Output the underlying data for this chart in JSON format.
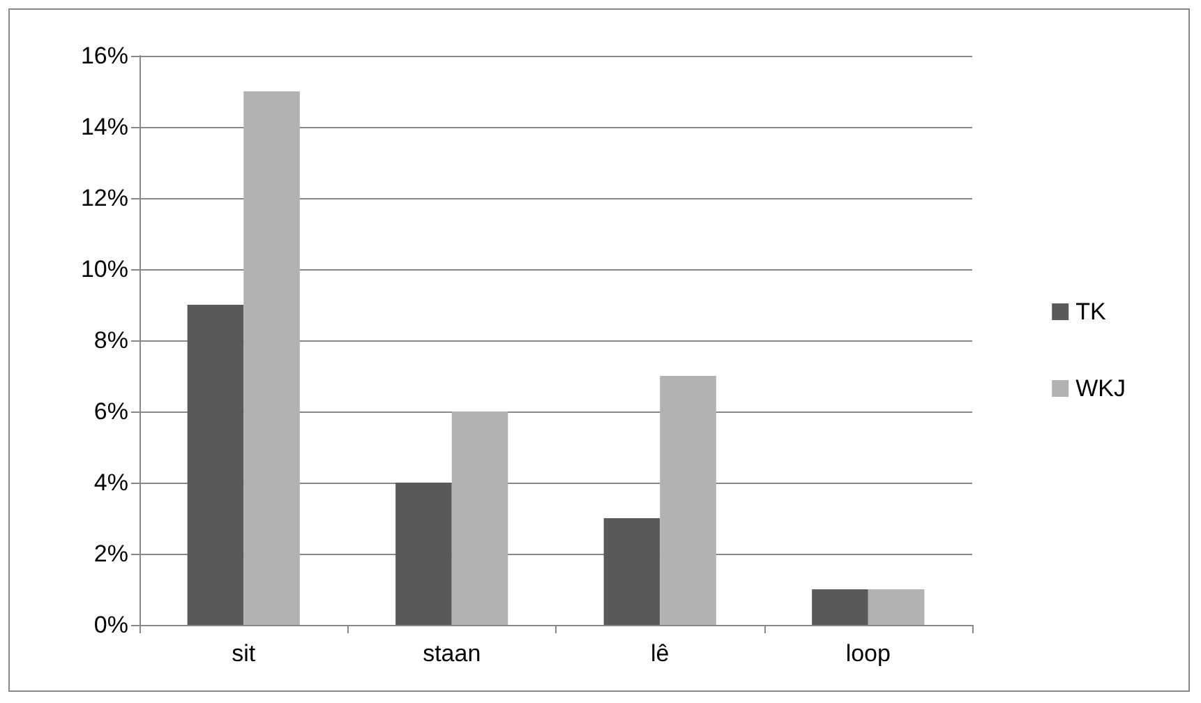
{
  "chart_data": {
    "type": "bar",
    "categories": [
      "sit",
      "staan",
      "lê",
      "loop"
    ],
    "series": [
      {
        "name": "TK",
        "color": "#595959",
        "values": [
          9,
          4,
          3,
          1
        ]
      },
      {
        "name": "WKJ",
        "color": "#b2b2b2",
        "values": [
          15,
          6,
          7,
          1
        ]
      }
    ],
    "ylim": [
      0,
      16
    ],
    "yticks": [
      {
        "value": 0,
        "label": "0%"
      },
      {
        "value": 2,
        "label": "2%"
      },
      {
        "value": 4,
        "label": "4%"
      },
      {
        "value": 6,
        "label": "6%"
      },
      {
        "value": 8,
        "label": "8%"
      },
      {
        "value": 10,
        "label": "10%"
      },
      {
        "value": 12,
        "label": "12%"
      },
      {
        "value": 14,
        "label": "14%"
      },
      {
        "value": 16,
        "label": "16%"
      }
    ],
    "grid": "y",
    "legend": "right"
  }
}
